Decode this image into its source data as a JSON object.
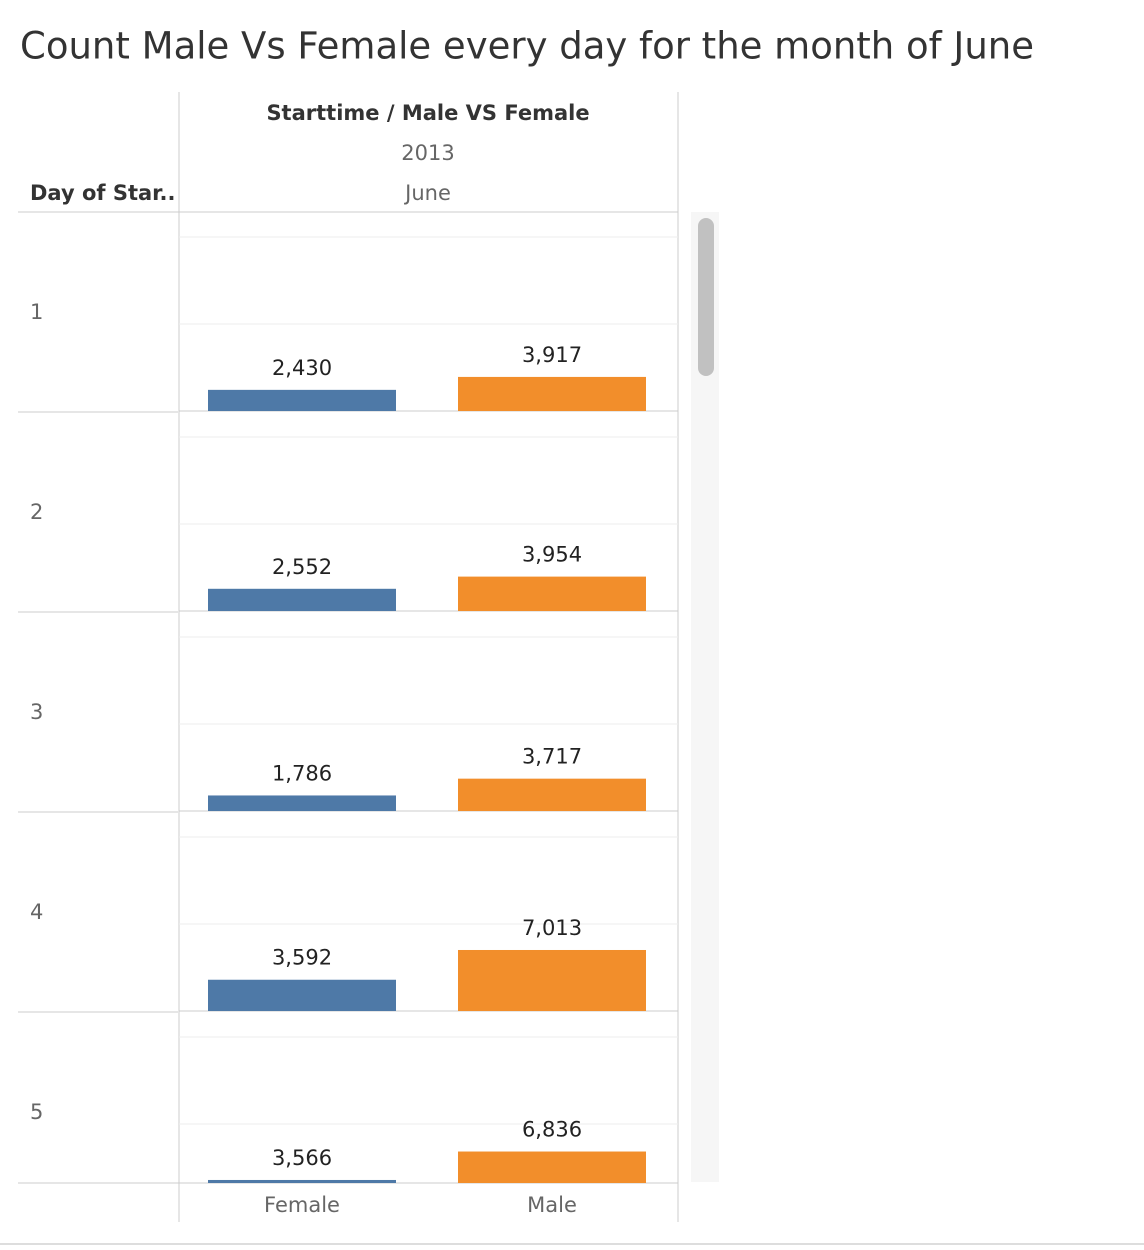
{
  "chart_data": {
    "type": "bar",
    "title": "Count Male Vs Female every day for the month of June",
    "column_header": "Starttime / Male VS Female",
    "year": "2013",
    "month": "June",
    "row_header": "Day of Star..",
    "categories": [
      "Female",
      "Male"
    ],
    "colors": [
      "#4e79a7",
      "#f28e2b"
    ],
    "series": [
      {
        "name": "1",
        "values": [
          2430,
          3917
        ],
        "value_labels": [
          "2,430",
          "3,917"
        ]
      },
      {
        "name": "2",
        "values": [
          2552,
          3954
        ],
        "value_labels": [
          "2,552",
          "3,954"
        ]
      },
      {
        "name": "3",
        "values": [
          1786,
          3717
        ],
        "value_labels": [
          "1,786",
          "3,717"
        ]
      },
      {
        "name": "4",
        "values": [
          3592,
          7013
        ],
        "value_labels": [
          "3,592",
          "7,013"
        ]
      },
      {
        "name": "5",
        "values": [
          3566,
          6836
        ],
        "value_labels": [
          "3,566",
          "6,836"
        ]
      }
    ],
    "ylim": [
      0,
      20000
    ],
    "yticks": [
      0,
      10000,
      20000
    ],
    "grid": true
  }
}
